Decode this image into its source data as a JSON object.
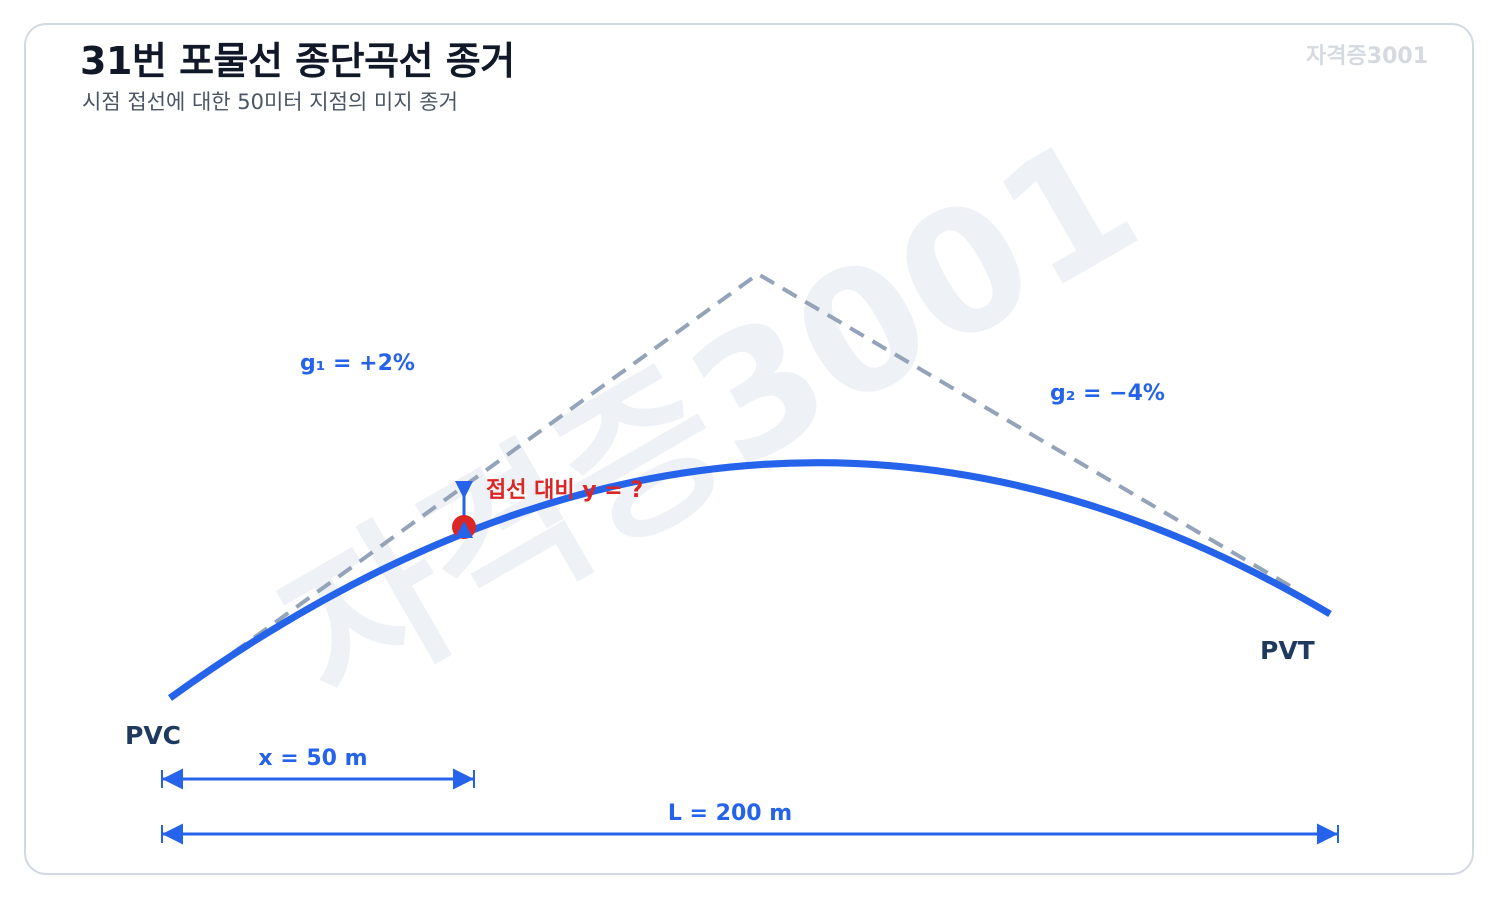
{
  "header": {
    "title": "31번 포물선 종단곡선 종거",
    "subtitle": "시점 접선에 대한 50미터 지점의 미지 종거",
    "brand": "자격증3001"
  },
  "watermark": "자격증3001",
  "labels": {
    "g1": "g₁ = +2%",
    "g2": "g₂ = −4%",
    "pvc": "PVC",
    "pvt": "PVT",
    "question": "접선 대비 y = ?",
    "x_dim": "x = 50 m",
    "l_dim": "L = 200 m"
  },
  "colors": {
    "curve": "#2563eb",
    "tangent": "#94a3b8",
    "point": "#dc2626",
    "dimension": "#2563eb"
  }
}
